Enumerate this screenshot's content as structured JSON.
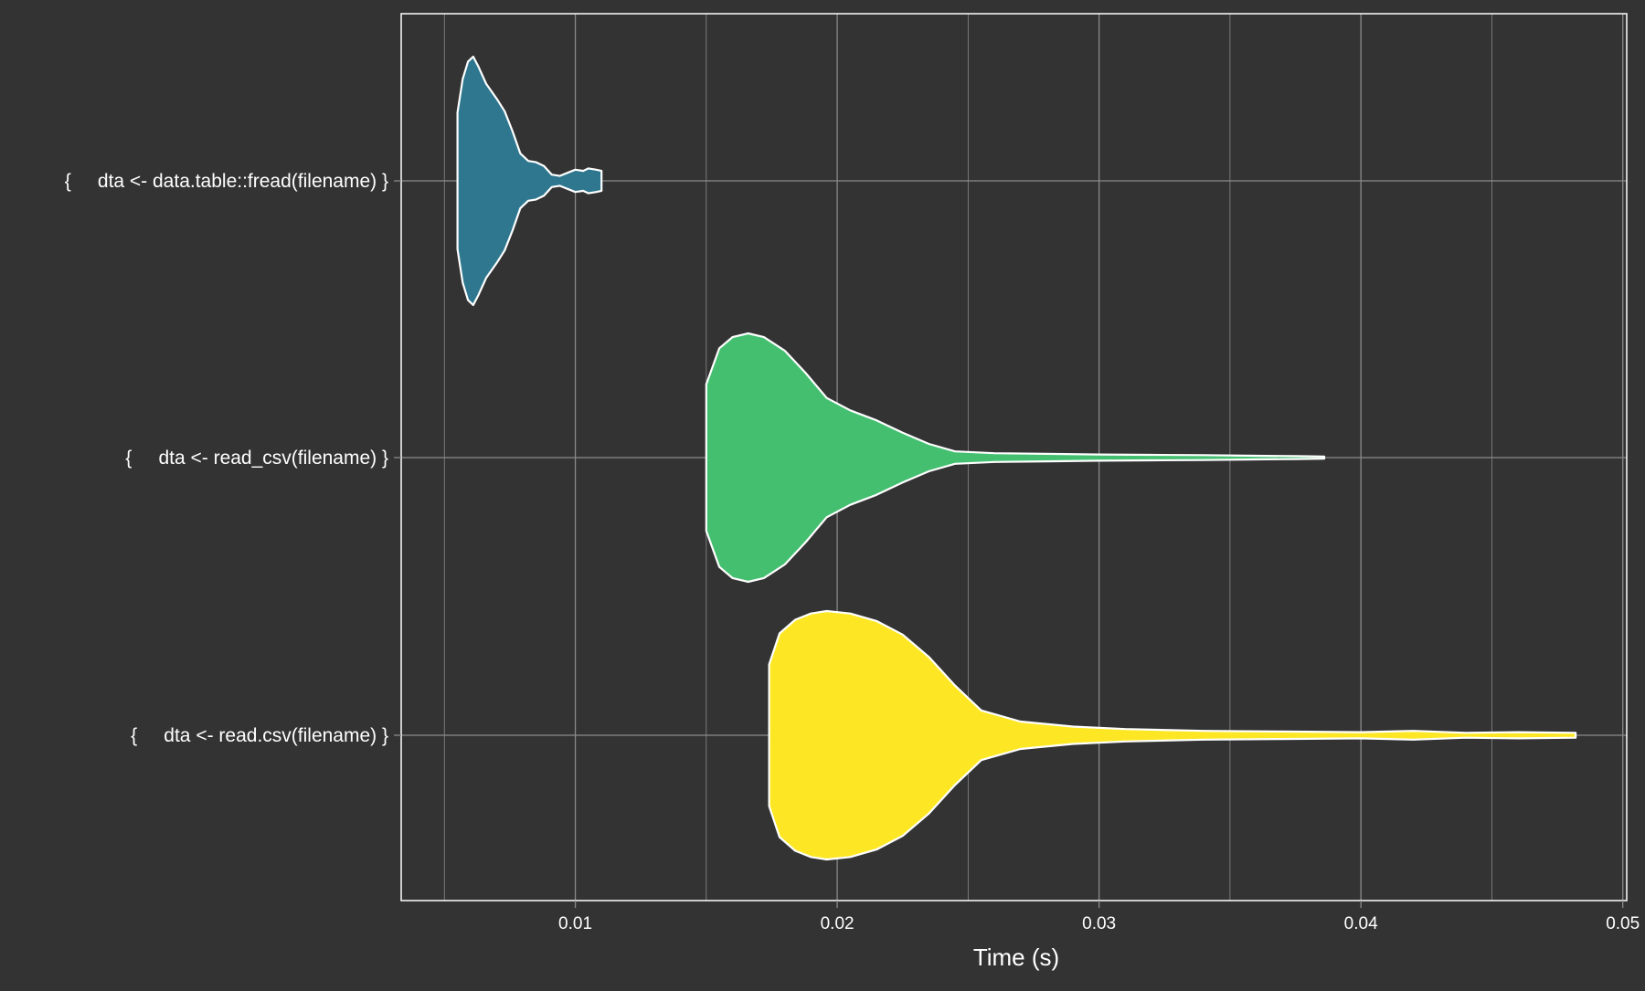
{
  "chart_data": {
    "type": "violin",
    "orientation": "horizontal",
    "xlabel": "Time (s)",
    "ylabel": "",
    "xlim": [
      0.00335,
      0.05015
    ],
    "xticks": [
      0.01,
      0.02,
      0.03,
      0.04,
      0.05
    ],
    "xtick_labels": [
      "0.01",
      "0.02",
      "0.03",
      "0.04",
      "0.05"
    ],
    "grid": true,
    "legend": "none",
    "colors": {
      "background": "#333333",
      "grid": "#8a8a8a",
      "outline": "#ffffff",
      "text": "#ffffff"
    },
    "categories": [
      "{     dta <- data.table::fread(filename) }",
      "{     dta <- read_csv(filename) }",
      "{     dta <- read.csv(filename) }"
    ],
    "series": [
      {
        "category": "{     dta <- data.table::fread(filename) }",
        "color": "#2E778F",
        "density": [
          [
            0.0055,
            0.55
          ],
          [
            0.0057,
            0.82
          ],
          [
            0.0059,
            0.96
          ],
          [
            0.0061,
            1.0
          ],
          [
            0.0063,
            0.92
          ],
          [
            0.0066,
            0.78
          ],
          [
            0.007,
            0.66
          ],
          [
            0.0073,
            0.56
          ],
          [
            0.0076,
            0.4
          ],
          [
            0.0079,
            0.22
          ],
          [
            0.0082,
            0.16
          ],
          [
            0.0085,
            0.15
          ],
          [
            0.0088,
            0.12
          ],
          [
            0.0091,
            0.05
          ],
          [
            0.0094,
            0.04
          ],
          [
            0.0097,
            0.065
          ],
          [
            0.01,
            0.09
          ],
          [
            0.0103,
            0.08
          ],
          [
            0.0105,
            0.1
          ],
          [
            0.0108,
            0.09
          ],
          [
            0.011,
            0.08
          ]
        ]
      },
      {
        "category": "{     dta <- read_csv(filename) }",
        "color": "#44BF70",
        "density": [
          [
            0.015,
            0.59
          ],
          [
            0.0155,
            0.88
          ],
          [
            0.016,
            0.97
          ],
          [
            0.0166,
            1.0
          ],
          [
            0.0172,
            0.97
          ],
          [
            0.018,
            0.86
          ],
          [
            0.0188,
            0.68
          ],
          [
            0.0196,
            0.48
          ],
          [
            0.0205,
            0.38
          ],
          [
            0.0215,
            0.3
          ],
          [
            0.0225,
            0.2
          ],
          [
            0.0235,
            0.11
          ],
          [
            0.0245,
            0.05
          ],
          [
            0.026,
            0.035
          ],
          [
            0.028,
            0.03
          ],
          [
            0.03,
            0.025
          ],
          [
            0.032,
            0.022
          ],
          [
            0.034,
            0.02
          ],
          [
            0.036,
            0.015
          ],
          [
            0.0375,
            0.012
          ],
          [
            0.0386,
            0.008
          ]
        ]
      },
      {
        "category": "{     dta <- read.csv(filename) }",
        "color": "#FDE725",
        "density": [
          [
            0.0174,
            0.57
          ],
          [
            0.0178,
            0.82
          ],
          [
            0.0184,
            0.93
          ],
          [
            0.019,
            0.98
          ],
          [
            0.0196,
            1.0
          ],
          [
            0.0205,
            0.98
          ],
          [
            0.0215,
            0.92
          ],
          [
            0.0225,
            0.81
          ],
          [
            0.0235,
            0.63
          ],
          [
            0.0245,
            0.4
          ],
          [
            0.0255,
            0.2
          ],
          [
            0.027,
            0.11
          ],
          [
            0.029,
            0.07
          ],
          [
            0.031,
            0.05
          ],
          [
            0.034,
            0.035
          ],
          [
            0.037,
            0.03
          ],
          [
            0.04,
            0.025
          ],
          [
            0.042,
            0.035
          ],
          [
            0.044,
            0.02
          ],
          [
            0.046,
            0.025
          ],
          [
            0.0482,
            0.02
          ]
        ]
      }
    ]
  }
}
